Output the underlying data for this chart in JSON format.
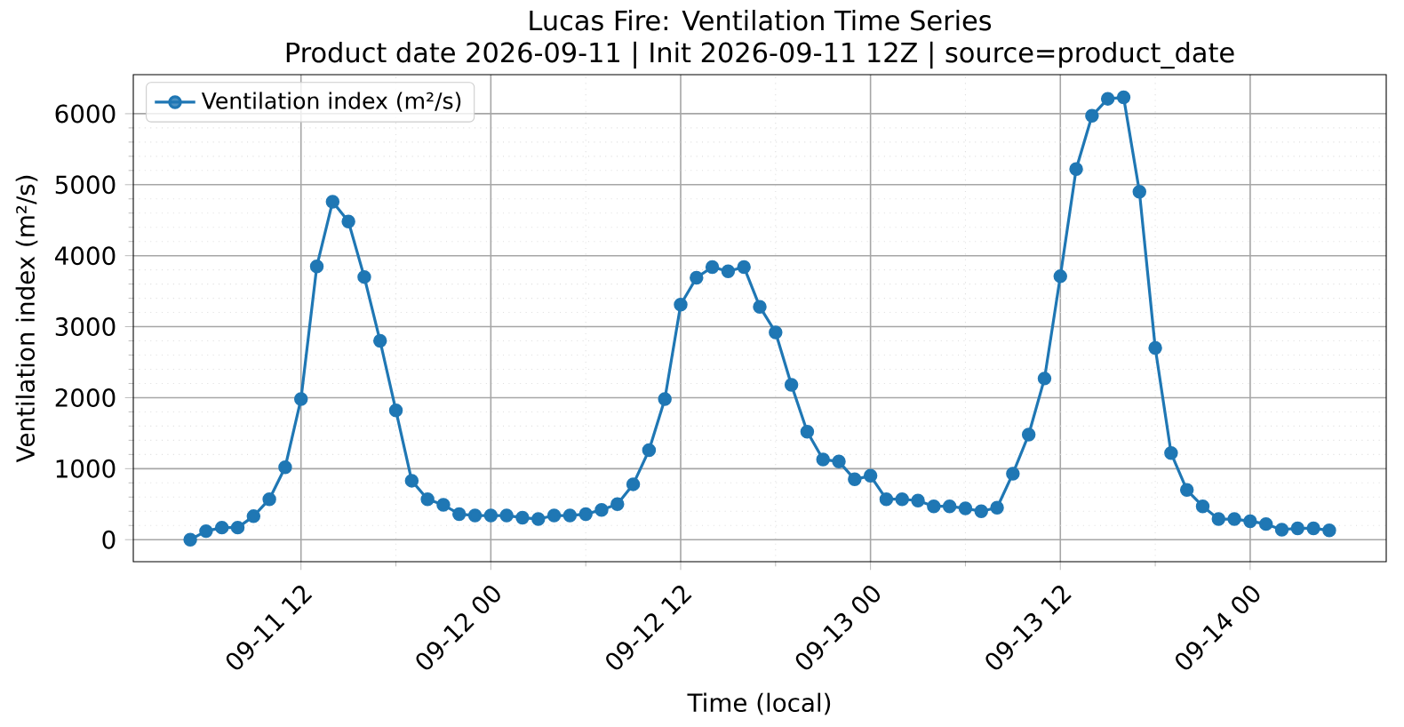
{
  "chart_data": {
    "type": "line",
    "title": "Lucas Fire: Ventilation Time Series",
    "subtitle": "Product date 2026-09-11 | Init 2026-09-11 12Z | source=product_date",
    "xlabel": "Time (local)",
    "ylabel": "Ventilation index (m²/s)",
    "x": [
      "2026-09-11T05:00",
      "2026-09-11T06:00",
      "2026-09-11T07:00",
      "2026-09-11T08:00",
      "2026-09-11T09:00",
      "2026-09-11T10:00",
      "2026-09-11T11:00",
      "2026-09-11T12:00",
      "2026-09-11T13:00",
      "2026-09-11T14:00",
      "2026-09-11T15:00",
      "2026-09-11T16:00",
      "2026-09-11T17:00",
      "2026-09-11T18:00",
      "2026-09-11T19:00",
      "2026-09-11T20:00",
      "2026-09-11T21:00",
      "2026-09-11T22:00",
      "2026-09-11T23:00",
      "2026-09-12T00:00",
      "2026-09-12T01:00",
      "2026-09-12T02:00",
      "2026-09-12T03:00",
      "2026-09-12T04:00",
      "2026-09-12T05:00",
      "2026-09-12T06:00",
      "2026-09-12T07:00",
      "2026-09-12T08:00",
      "2026-09-12T09:00",
      "2026-09-12T10:00",
      "2026-09-12T11:00",
      "2026-09-12T12:00",
      "2026-09-12T13:00",
      "2026-09-12T14:00",
      "2026-09-12T15:00",
      "2026-09-12T16:00",
      "2026-09-12T17:00",
      "2026-09-12T18:00",
      "2026-09-12T19:00",
      "2026-09-12T20:00",
      "2026-09-12T21:00",
      "2026-09-12T22:00",
      "2026-09-12T23:00",
      "2026-09-13T00:00",
      "2026-09-13T01:00",
      "2026-09-13T02:00",
      "2026-09-13T03:00",
      "2026-09-13T04:00",
      "2026-09-13T05:00",
      "2026-09-13T06:00",
      "2026-09-13T07:00",
      "2026-09-13T08:00",
      "2026-09-13T09:00",
      "2026-09-13T10:00",
      "2026-09-13T11:00",
      "2026-09-13T12:00",
      "2026-09-13T13:00",
      "2026-09-13T14:00",
      "2026-09-13T15:00",
      "2026-09-13T16:00",
      "2026-09-13T17:00",
      "2026-09-13T18:00",
      "2026-09-13T19:00",
      "2026-09-13T20:00",
      "2026-09-13T21:00",
      "2026-09-13T22:00",
      "2026-09-13T23:00",
      "2026-09-14T00:00",
      "2026-09-14T01:00",
      "2026-09-14T02:00",
      "2026-09-14T03:00",
      "2026-09-14T04:00",
      "2026-09-14T05:00"
    ],
    "series": [
      {
        "name": "Ventilation index (m²/s)",
        "color": "#1f77b4",
        "values": [
          0,
          120,
          170,
          170,
          330,
          570,
          1020,
          1980,
          3850,
          4760,
          4480,
          3700,
          2800,
          1820,
          830,
          570,
          490,
          360,
          340,
          340,
          340,
          310,
          290,
          340,
          340,
          360,
          420,
          500,
          780,
          1260,
          1980,
          3310,
          3690,
          3840,
          3780,
          3840,
          3280,
          2920,
          2180,
          1520,
          1130,
          1100,
          850,
          900,
          570,
          570,
          550,
          470,
          470,
          440,
          400,
          450,
          930,
          1480,
          2270,
          3710,
          5220,
          5970,
          6210,
          6230,
          4900,
          2700,
          1220,
          700,
          470,
          290,
          290,
          260,
          220,
          140,
          160,
          160,
          130
        ]
      }
    ],
    "xlim": [
      "2026-09-11T01:24",
      "2026-09-14T08:36"
    ],
    "xticks": [
      {
        "value": "2026-09-11T12:00",
        "label": "09-11 12"
      },
      {
        "value": "2026-09-12T00:00",
        "label": "09-12 00"
      },
      {
        "value": "2026-09-12T12:00",
        "label": "09-12 12"
      },
      {
        "value": "2026-09-13T00:00",
        "label": "09-13 00"
      },
      {
        "value": "2026-09-13T12:00",
        "label": "09-13 12"
      },
      {
        "value": "2026-09-14T00:00",
        "label": "09-14 00"
      }
    ],
    "ylim": [
      -310,
      6550
    ],
    "yticks": [
      0,
      1000,
      2000,
      3000,
      4000,
      5000,
      6000
    ],
    "grid": true,
    "legend": "top left",
    "marker": "circle",
    "line_style": "solid"
  }
}
